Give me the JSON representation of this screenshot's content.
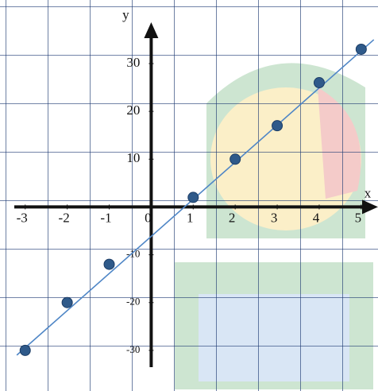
{
  "chart_data": {
    "type": "scatter",
    "x_label": "x",
    "y_label": "y",
    "series": [
      {
        "color": "#2f5a8a",
        "x": [
          -3,
          -2,
          -1,
          1,
          2,
          3,
          4,
          5
        ],
        "values": [
          -30,
          -20,
          -12,
          2,
          10,
          17,
          26,
          33
        ]
      },
      {
        "type": "line",
        "color": "#4f86c6",
        "x": [
          -3.2,
          5.3
        ],
        "values": [
          -31,
          35
        ]
      }
    ],
    "xlim": [
      -3.6,
      5.4
    ],
    "ylim": [
      -38.5,
      43.3
    ],
    "xticks": [
      -3,
      -2,
      -1,
      0,
      1,
      2,
      3,
      4,
      5
    ],
    "yticks": [
      30,
      20,
      10,
      -10,
      -20,
      -30
    ]
  }
}
